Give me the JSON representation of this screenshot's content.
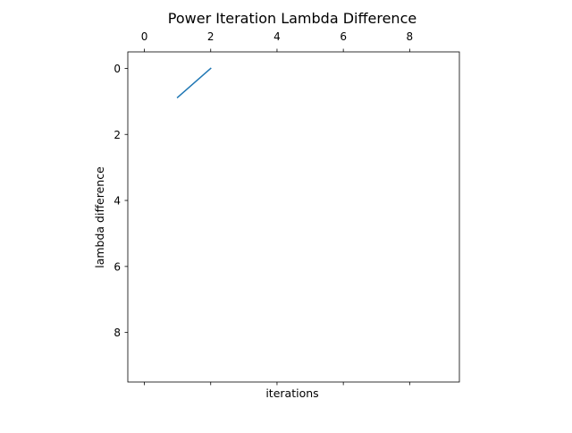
{
  "chart_data": {
    "type": "line",
    "title": "Power Iteration Lambda Difference",
    "xlabel": "iterations",
    "ylabel": "lambda difference",
    "x_axis_position": "top",
    "y_axis_inverted": true,
    "xlim": [
      -0.5,
      9.5
    ],
    "ylim": [
      9.5,
      -0.5
    ],
    "xticks": [
      0,
      2,
      4,
      6,
      8
    ],
    "yticks": [
      0,
      2,
      4,
      6,
      8
    ],
    "xtick_labels": [
      "0",
      "2",
      "4",
      "6",
      "8"
    ],
    "ytick_labels": [
      "0",
      "2",
      "4",
      "6",
      "8"
    ],
    "grid": false,
    "legend": "none",
    "series": [
      {
        "color": "#1f77b4",
        "x": [
          1,
          2
        ],
        "y": [
          0.88,
          0
        ]
      }
    ]
  }
}
